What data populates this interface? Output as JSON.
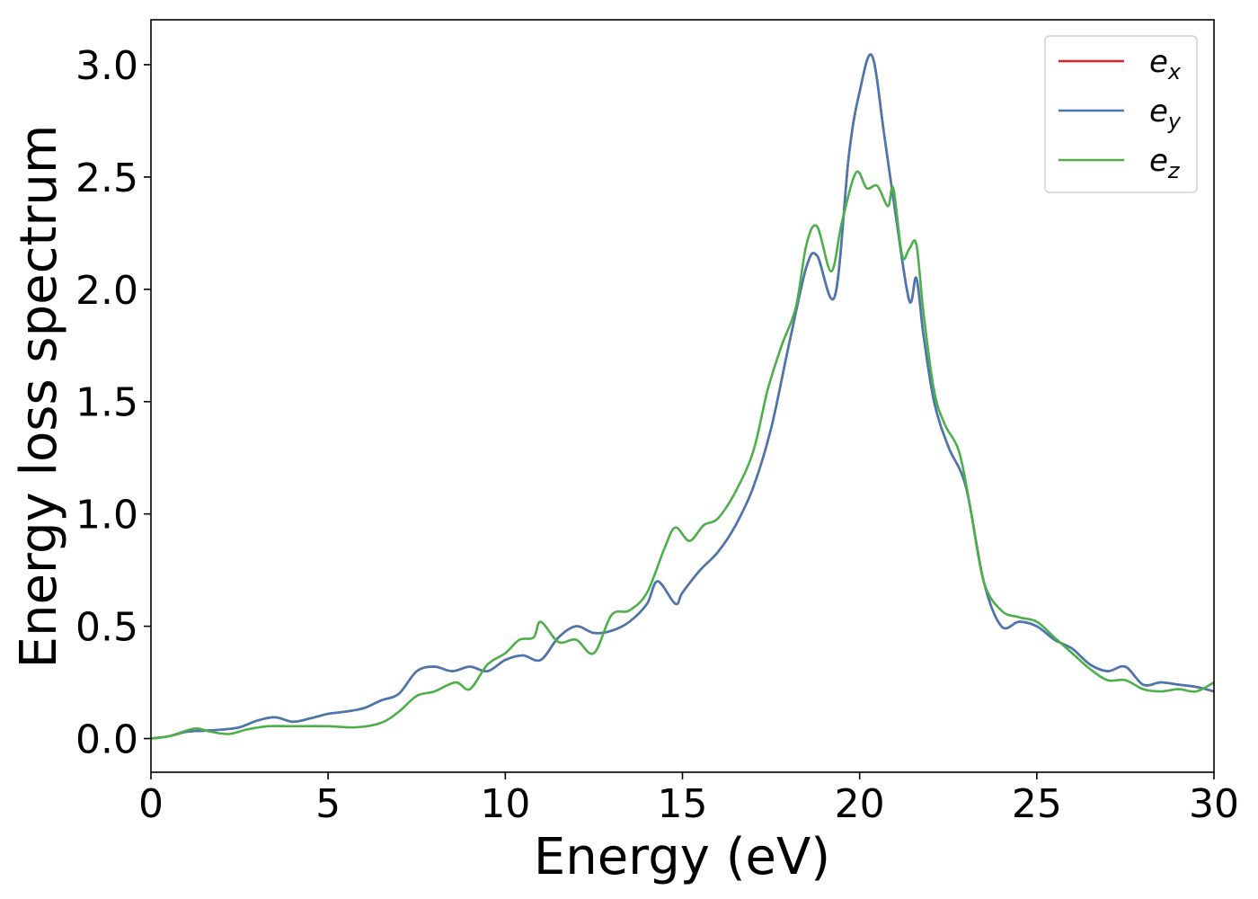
{
  "chart_data": {
    "type": "line",
    "title": "",
    "xlabel": "Energy (eV)",
    "ylabel": "Energy loss spectrum",
    "xlim": [
      0,
      30
    ],
    "ylim": [
      -0.15,
      3.2
    ],
    "xticks": [
      0,
      5,
      10,
      15,
      20,
      25,
      30
    ],
    "yticks": [
      0.0,
      0.5,
      1.0,
      1.5,
      2.0,
      2.5,
      3.0
    ],
    "xtick_labels": [
      "0",
      "5",
      "10",
      "15",
      "20",
      "25",
      "30"
    ],
    "ytick_labels": [
      "0.0",
      "0.5",
      "1.0",
      "1.5",
      "2.0",
      "2.5",
      "3.0"
    ],
    "grid": false,
    "legend_position": "top-right",
    "series": [
      {
        "name": "e_x",
        "label_base": "e",
        "label_sub": "x",
        "color": "#d62728",
        "x": [
          0,
          0.5,
          1,
          1.5,
          2,
          2.5,
          3,
          3.5,
          4,
          4.5,
          5,
          5.5,
          6,
          6.5,
          7,
          7.5,
          8,
          8.5,
          9,
          9.5,
          10,
          10.5,
          11,
          11.5,
          12,
          12.5,
          13,
          13.5,
          14,
          14.3,
          14.8,
          15,
          15.5,
          16,
          16.5,
          17,
          17.5,
          18,
          18.5,
          18.8,
          19.3,
          19.7,
          20,
          20.35,
          20.7,
          21,
          21.4,
          21.6,
          21.8,
          22.1,
          22.5,
          23,
          23.5,
          24,
          24.5,
          25,
          25.5,
          26,
          26.5,
          27,
          27.5,
          28,
          28.5,
          29,
          29.5,
          30
        ],
        "values": [
          0,
          0.01,
          0.03,
          0.035,
          0.04,
          0.05,
          0.08,
          0.095,
          0.075,
          0.09,
          0.11,
          0.12,
          0.135,
          0.17,
          0.2,
          0.3,
          0.32,
          0.3,
          0.32,
          0.3,
          0.35,
          0.37,
          0.35,
          0.45,
          0.5,
          0.47,
          0.48,
          0.52,
          0.6,
          0.7,
          0.6,
          0.65,
          0.75,
          0.83,
          0.95,
          1.12,
          1.38,
          1.75,
          2.1,
          2.15,
          1.97,
          2.6,
          2.88,
          3.04,
          2.68,
          2.35,
          1.95,
          2.05,
          1.8,
          1.5,
          1.3,
          1.12,
          0.7,
          0.5,
          0.52,
          0.5,
          0.44,
          0.4,
          0.33,
          0.3,
          0.32,
          0.24,
          0.25,
          0.24,
          0.23,
          0.21
        ]
      },
      {
        "name": "e_y",
        "label_base": "e",
        "label_sub": "y",
        "color": "#4878b0",
        "x": [
          0,
          0.5,
          1,
          1.5,
          2,
          2.5,
          3,
          3.5,
          4,
          4.5,
          5,
          5.5,
          6,
          6.5,
          7,
          7.5,
          8,
          8.5,
          9,
          9.5,
          10,
          10.5,
          11,
          11.5,
          12,
          12.5,
          13,
          13.5,
          14,
          14.3,
          14.8,
          15,
          15.5,
          16,
          16.5,
          17,
          17.5,
          18,
          18.5,
          18.8,
          19.3,
          19.7,
          20,
          20.35,
          20.7,
          21,
          21.4,
          21.6,
          21.8,
          22.1,
          22.5,
          23,
          23.5,
          24,
          24.5,
          25,
          25.5,
          26,
          26.5,
          27,
          27.5,
          28,
          28.5,
          29,
          29.5,
          30
        ],
        "values": [
          0,
          0.01,
          0.03,
          0.035,
          0.04,
          0.05,
          0.08,
          0.095,
          0.075,
          0.09,
          0.11,
          0.12,
          0.135,
          0.17,
          0.2,
          0.3,
          0.32,
          0.3,
          0.32,
          0.3,
          0.35,
          0.37,
          0.35,
          0.45,
          0.5,
          0.47,
          0.48,
          0.52,
          0.6,
          0.7,
          0.6,
          0.65,
          0.75,
          0.83,
          0.95,
          1.12,
          1.38,
          1.75,
          2.1,
          2.15,
          1.97,
          2.6,
          2.88,
          3.04,
          2.68,
          2.35,
          1.95,
          2.05,
          1.8,
          1.5,
          1.3,
          1.12,
          0.7,
          0.5,
          0.52,
          0.5,
          0.44,
          0.4,
          0.33,
          0.3,
          0.32,
          0.24,
          0.25,
          0.24,
          0.23,
          0.21
        ]
      },
      {
        "name": "e_z",
        "label_base": "e",
        "label_sub": "z",
        "color": "#4daf4a",
        "x": [
          0,
          0.5,
          1,
          1.3,
          1.7,
          2.2,
          2.7,
          3.3,
          4,
          5,
          5.8,
          6.5,
          7,
          7.5,
          8,
          8.6,
          9,
          9.5,
          10,
          10.4,
          10.8,
          11,
          11.5,
          12,
          12.5,
          13,
          13.5,
          14,
          14.5,
          14.8,
          15.2,
          15.6,
          16,
          16.5,
          17,
          17.4,
          17.8,
          18.2,
          18.5,
          18.8,
          19.2,
          19.5,
          19.9,
          20.2,
          20.5,
          20.8,
          20.95,
          21.2,
          21.4,
          21.6,
          21.8,
          22.1,
          22.4,
          22.8,
          23.1,
          23.5,
          24,
          24.5,
          25,
          25.5,
          26,
          26.5,
          27,
          27.5,
          28,
          28.5,
          29,
          29.5,
          30
        ],
        "values": [
          0,
          0.01,
          0.035,
          0.045,
          0.03,
          0.02,
          0.04,
          0.055,
          0.055,
          0.055,
          0.05,
          0.07,
          0.12,
          0.19,
          0.21,
          0.25,
          0.22,
          0.33,
          0.38,
          0.44,
          0.45,
          0.52,
          0.43,
          0.44,
          0.38,
          0.55,
          0.57,
          0.65,
          0.85,
          0.94,
          0.88,
          0.95,
          0.98,
          1.1,
          1.28,
          1.55,
          1.75,
          1.92,
          2.2,
          2.28,
          2.08,
          2.3,
          2.52,
          2.45,
          2.46,
          2.37,
          2.45,
          2.15,
          2.18,
          2.2,
          1.9,
          1.55,
          1.4,
          1.28,
          1.05,
          0.7,
          0.57,
          0.54,
          0.52,
          0.45,
          0.38,
          0.31,
          0.26,
          0.26,
          0.22,
          0.21,
          0.22,
          0.21,
          0.25
        ]
      }
    ]
  }
}
